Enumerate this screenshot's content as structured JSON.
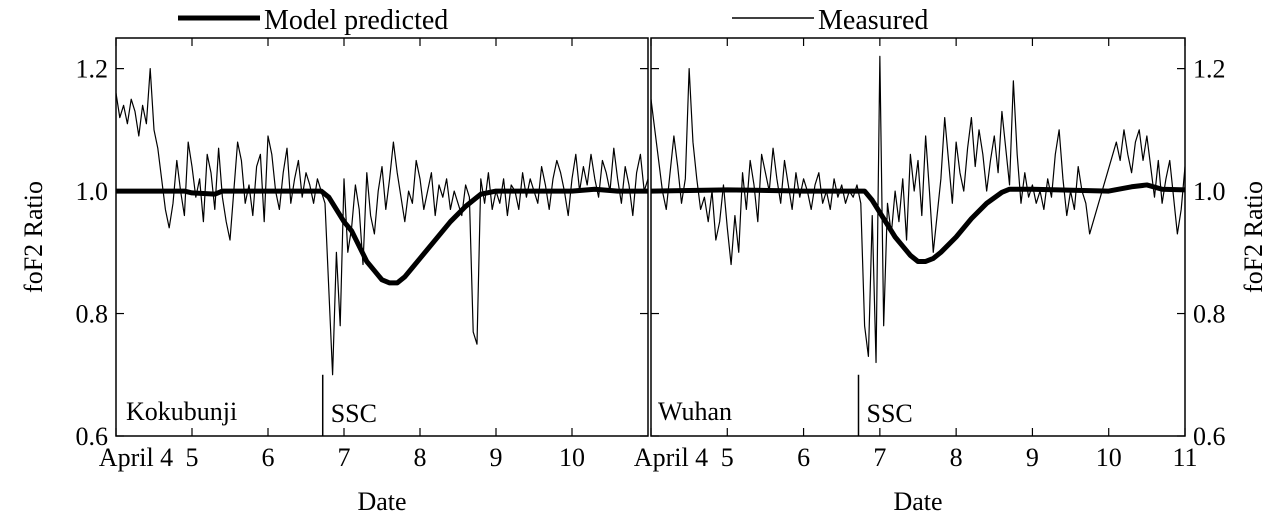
{
  "legend": {
    "model_label": "Model predicted",
    "measured_label": "Measured"
  },
  "colors": {
    "model": "#000000",
    "measured": "#000000",
    "axes": "#000000",
    "background": "#ffffff"
  },
  "chart_data": [
    {
      "type": "line",
      "station": "Kokubunji",
      "xlabel": "Date",
      "ylabel": "foF2 Ratio",
      "xlim": [
        4.0,
        11.0
      ],
      "ylim": [
        0.6,
        1.25
      ],
      "x_ticks": [
        4,
        5,
        6,
        7,
        8,
        9,
        10
      ],
      "x_tick_labels": [
        "April 4",
        "5",
        "6",
        "7",
        "8",
        "9",
        "10"
      ],
      "y_ticks": [
        0.6,
        0.8,
        1.0,
        1.2
      ],
      "y_tick_labels": [
        "0.6",
        "0.8",
        "1.0",
        "1.2"
      ],
      "y_axis_side": "left",
      "grid": false,
      "event": {
        "label": "SSC",
        "x": 6.72
      },
      "series": [
        {
          "name": "Model predicted",
          "style": "thick",
          "x": [
            4.0,
            4.5,
            4.9,
            5.0,
            5.3,
            5.4,
            6.7,
            6.8,
            6.9,
            7.0,
            7.1,
            7.2,
            7.3,
            7.4,
            7.5,
            7.6,
            7.7,
            7.8,
            7.9,
            8.0,
            8.2,
            8.4,
            8.6,
            8.8,
            9.0,
            10.0,
            10.3,
            10.6,
            11.0
          ],
          "values": [
            1.0,
            1.0,
            1.0,
            0.997,
            0.995,
            1.0,
            1.0,
            0.99,
            0.97,
            0.95,
            0.935,
            0.91,
            0.885,
            0.87,
            0.855,
            0.85,
            0.85,
            0.86,
            0.875,
            0.89,
            0.92,
            0.95,
            0.975,
            0.995,
            1.0,
            1.0,
            1.003,
            1.0,
            1.0
          ]
        },
        {
          "name": "Measured",
          "style": "thin",
          "x": [
            4.0,
            4.05,
            4.1,
            4.15,
            4.2,
            4.25,
            4.3,
            4.35,
            4.4,
            4.45,
            4.5,
            4.55,
            4.6,
            4.65,
            4.7,
            4.75,
            4.8,
            4.85,
            4.9,
            4.95,
            5.0,
            5.05,
            5.1,
            5.15,
            5.2,
            5.25,
            5.3,
            5.35,
            5.4,
            5.45,
            5.5,
            5.55,
            5.6,
            5.65,
            5.7,
            5.75,
            5.8,
            5.85,
            5.9,
            5.95,
            6.0,
            6.05,
            6.1,
            6.15,
            6.2,
            6.25,
            6.3,
            6.35,
            6.4,
            6.45,
            6.5,
            6.55,
            6.6,
            6.65,
            6.7,
            6.75,
            6.8,
            6.85,
            6.9,
            6.95,
            7.0,
            7.05,
            7.1,
            7.15,
            7.2,
            7.25,
            7.3,
            7.35,
            7.4,
            7.45,
            7.5,
            7.55,
            7.6,
            7.65,
            7.7,
            7.75,
            7.8,
            7.85,
            7.9,
            7.95,
            8.0,
            8.05,
            8.1,
            8.15,
            8.2,
            8.25,
            8.3,
            8.35,
            8.4,
            8.45,
            8.5,
            8.55,
            8.6,
            8.65,
            8.7,
            8.75,
            8.8,
            8.85,
            8.9,
            8.95,
            9.0,
            9.05,
            9.1,
            9.15,
            9.2,
            9.25,
            9.3,
            9.35,
            9.4,
            9.45,
            9.5,
            9.55,
            9.6,
            9.65,
            9.7,
            9.75,
            9.8,
            9.85,
            9.9,
            9.95,
            10.0,
            10.05,
            10.1,
            10.15,
            10.2,
            10.25,
            10.3,
            10.35,
            10.4,
            10.45,
            10.5,
            10.55,
            10.6,
            10.65,
            10.7,
            10.75,
            10.8,
            10.85,
            10.9,
            10.95,
            11.0
          ],
          "values": [
            1.16,
            1.12,
            1.14,
            1.11,
            1.15,
            1.13,
            1.09,
            1.14,
            1.11,
            1.2,
            1.1,
            1.07,
            1.02,
            0.97,
            0.94,
            0.98,
            1.05,
            1.0,
            0.96,
            1.08,
            1.04,
            0.99,
            1.02,
            0.95,
            1.06,
            1.03,
            0.97,
            1.07,
            0.99,
            0.95,
            0.92,
            1.0,
            1.08,
            1.05,
            0.98,
            1.01,
            0.96,
            1.04,
            1.06,
            0.95,
            1.09,
            1.06,
            1.0,
            0.97,
            1.03,
            1.07,
            0.98,
            1.02,
            1.05,
            0.99,
            1.03,
            1.01,
            0.98,
            1.02,
            1.0,
            0.98,
            0.84,
            0.7,
            0.9,
            0.78,
            1.02,
            0.9,
            0.94,
            1.01,
            0.97,
            0.88,
            1.03,
            0.96,
            0.93,
            1.0,
            1.04,
            0.97,
            1.02,
            1.08,
            1.03,
            0.99,
            0.95,
            1.0,
            0.98,
            1.05,
            1.02,
            0.97,
            1.0,
            1.03,
            0.96,
            1.01,
            0.99,
            1.02,
            0.97,
            1.0,
            0.98,
            0.96,
            1.01,
            0.99,
            0.77,
            0.75,
            1.02,
            0.98,
            1.03,
            0.97,
            1.0,
            0.98,
            1.02,
            0.96,
            1.01,
            1.0,
            0.97,
            1.03,
            0.99,
            1.02,
            1.0,
            0.98,
            1.04,
            1.01,
            0.97,
            1.02,
            1.05,
            1.03,
            1.0,
            0.96,
            1.02,
            1.06,
            1.0,
            1.04,
            1.01,
            1.06,
            1.02,
            0.99,
            1.05,
            1.03,
            1.0,
            1.07,
            1.02,
            0.98,
            1.04,
            1.01,
            0.96,
            1.03,
            1.06,
            1.0,
            1.02
          ]
        }
      ]
    },
    {
      "type": "line",
      "station": "Wuhan",
      "xlabel": "Date",
      "ylabel": "foF2 Ratio",
      "xlim": [
        4.0,
        11.0
      ],
      "ylim": [
        0.6,
        1.25
      ],
      "x_ticks": [
        4,
        5,
        6,
        7,
        8,
        9,
        10,
        11
      ],
      "x_tick_labels": [
        "April 4",
        "5",
        "6",
        "7",
        "8",
        "9",
        "10",
        "11"
      ],
      "y_ticks": [
        0.6,
        0.8,
        1.0,
        1.2
      ],
      "y_tick_labels": [
        "0.6",
        "0.8",
        "1.0",
        "1.2"
      ],
      "y_axis_side": "right",
      "grid": false,
      "event": {
        "label": "SSC",
        "x": 6.72
      },
      "series": [
        {
          "name": "Model predicted",
          "style": "thick",
          "x": [
            4.0,
            5.0,
            6.0,
            6.8,
            6.9,
            7.0,
            7.1,
            7.2,
            7.3,
            7.4,
            7.5,
            7.6,
            7.7,
            7.8,
            8.0,
            8.2,
            8.4,
            8.6,
            8.7,
            9.0,
            10.0,
            10.3,
            10.5,
            10.7,
            11.0
          ],
          "values": [
            1.0,
            1.002,
            1.0,
            1.0,
            0.985,
            0.965,
            0.945,
            0.925,
            0.91,
            0.895,
            0.885,
            0.885,
            0.89,
            0.9,
            0.925,
            0.955,
            0.98,
            0.998,
            1.003,
            1.003,
            1.0,
            1.007,
            1.01,
            1.003,
            1.002
          ]
        },
        {
          "name": "Measured",
          "style": "thin",
          "x": [
            4.0,
            4.05,
            4.1,
            4.15,
            4.2,
            4.25,
            4.3,
            4.35,
            4.4,
            4.45,
            4.5,
            4.55,
            4.6,
            4.65,
            4.7,
            4.75,
            4.8,
            4.85,
            4.9,
            4.95,
            5.0,
            5.05,
            5.1,
            5.15,
            5.2,
            5.25,
            5.3,
            5.35,
            5.4,
            5.45,
            5.5,
            5.55,
            5.6,
            5.65,
            5.7,
            5.75,
            5.8,
            5.85,
            5.9,
            5.95,
            6.0,
            6.05,
            6.1,
            6.15,
            6.2,
            6.25,
            6.3,
            6.35,
            6.4,
            6.45,
            6.5,
            6.55,
            6.6,
            6.65,
            6.7,
            6.75,
            6.8,
            6.85,
            6.9,
            6.95,
            7.0,
            7.05,
            7.1,
            7.15,
            7.2,
            7.25,
            7.3,
            7.35,
            7.4,
            7.45,
            7.5,
            7.55,
            7.6,
            7.65,
            7.7,
            7.75,
            7.8,
            7.85,
            7.9,
            7.95,
            8.0,
            8.05,
            8.1,
            8.15,
            8.2,
            8.25,
            8.3,
            8.35,
            8.4,
            8.45,
            8.5,
            8.55,
            8.6,
            8.65,
            8.7,
            8.75,
            8.8,
            8.85,
            8.9,
            8.95,
            9.0,
            9.05,
            9.1,
            9.15,
            9.2,
            9.25,
            9.3,
            9.35,
            9.4,
            9.45,
            9.5,
            9.55,
            9.6,
            9.65,
            9.7,
            9.75,
            10.1,
            10.15,
            10.2,
            10.25,
            10.3,
            10.35,
            10.4,
            10.45,
            10.5,
            10.55,
            10.6,
            10.65,
            10.7,
            10.75,
            10.8,
            10.85,
            10.9,
            10.95,
            11.0
          ],
          "values": [
            1.15,
            1.1,
            1.05,
            1.0,
            0.97,
            1.03,
            1.09,
            1.04,
            0.98,
            1.02,
            1.2,
            1.08,
            1.02,
            0.97,
            0.99,
            0.95,
            1.0,
            0.92,
            0.95,
            1.01,
            0.94,
            0.88,
            0.96,
            0.9,
            1.03,
            0.97,
            1.05,
            1.01,
            0.95,
            1.06,
            1.03,
            1.0,
            1.07,
            1.02,
            0.98,
            1.05,
            1.01,
            0.97,
            1.03,
            0.99,
            1.02,
            1.0,
            0.97,
            1.01,
            1.03,
            0.98,
            1.0,
            0.97,
            1.02,
            0.99,
            1.01,
            0.98,
            1.0,
            0.99,
            1.01,
            0.98,
            0.78,
            0.73,
            0.96,
            0.72,
            1.22,
            0.78,
            0.98,
            0.93,
            1.0,
            0.95,
            1.02,
            0.92,
            1.06,
            1.0,
            1.05,
            0.96,
            1.09,
            1.0,
            0.9,
            0.96,
            1.02,
            1.12,
            1.05,
            0.98,
            1.08,
            1.03,
            1.0,
            1.07,
            1.12,
            1.04,
            1.1,
            1.06,
            1.0,
            1.05,
            1.09,
            1.03,
            1.13,
            1.07,
            1.01,
            1.18,
            1.06,
            0.98,
            1.03,
            0.99,
            1.01,
            0.98,
            1.0,
            0.97,
            1.02,
            0.99,
            1.06,
            1.1,
            1.02,
            0.96,
            1.0,
            0.97,
            1.04,
            1.0,
            0.98,
            0.93,
            1.08,
            1.05,
            1.1,
            1.06,
            1.03,
            1.08,
            1.1,
            1.05,
            1.09,
            1.04,
            0.99,
            1.05,
            0.98,
            1.02,
            1.05,
            0.99,
            0.93,
            0.97,
            1.04
          ]
        }
      ]
    }
  ]
}
